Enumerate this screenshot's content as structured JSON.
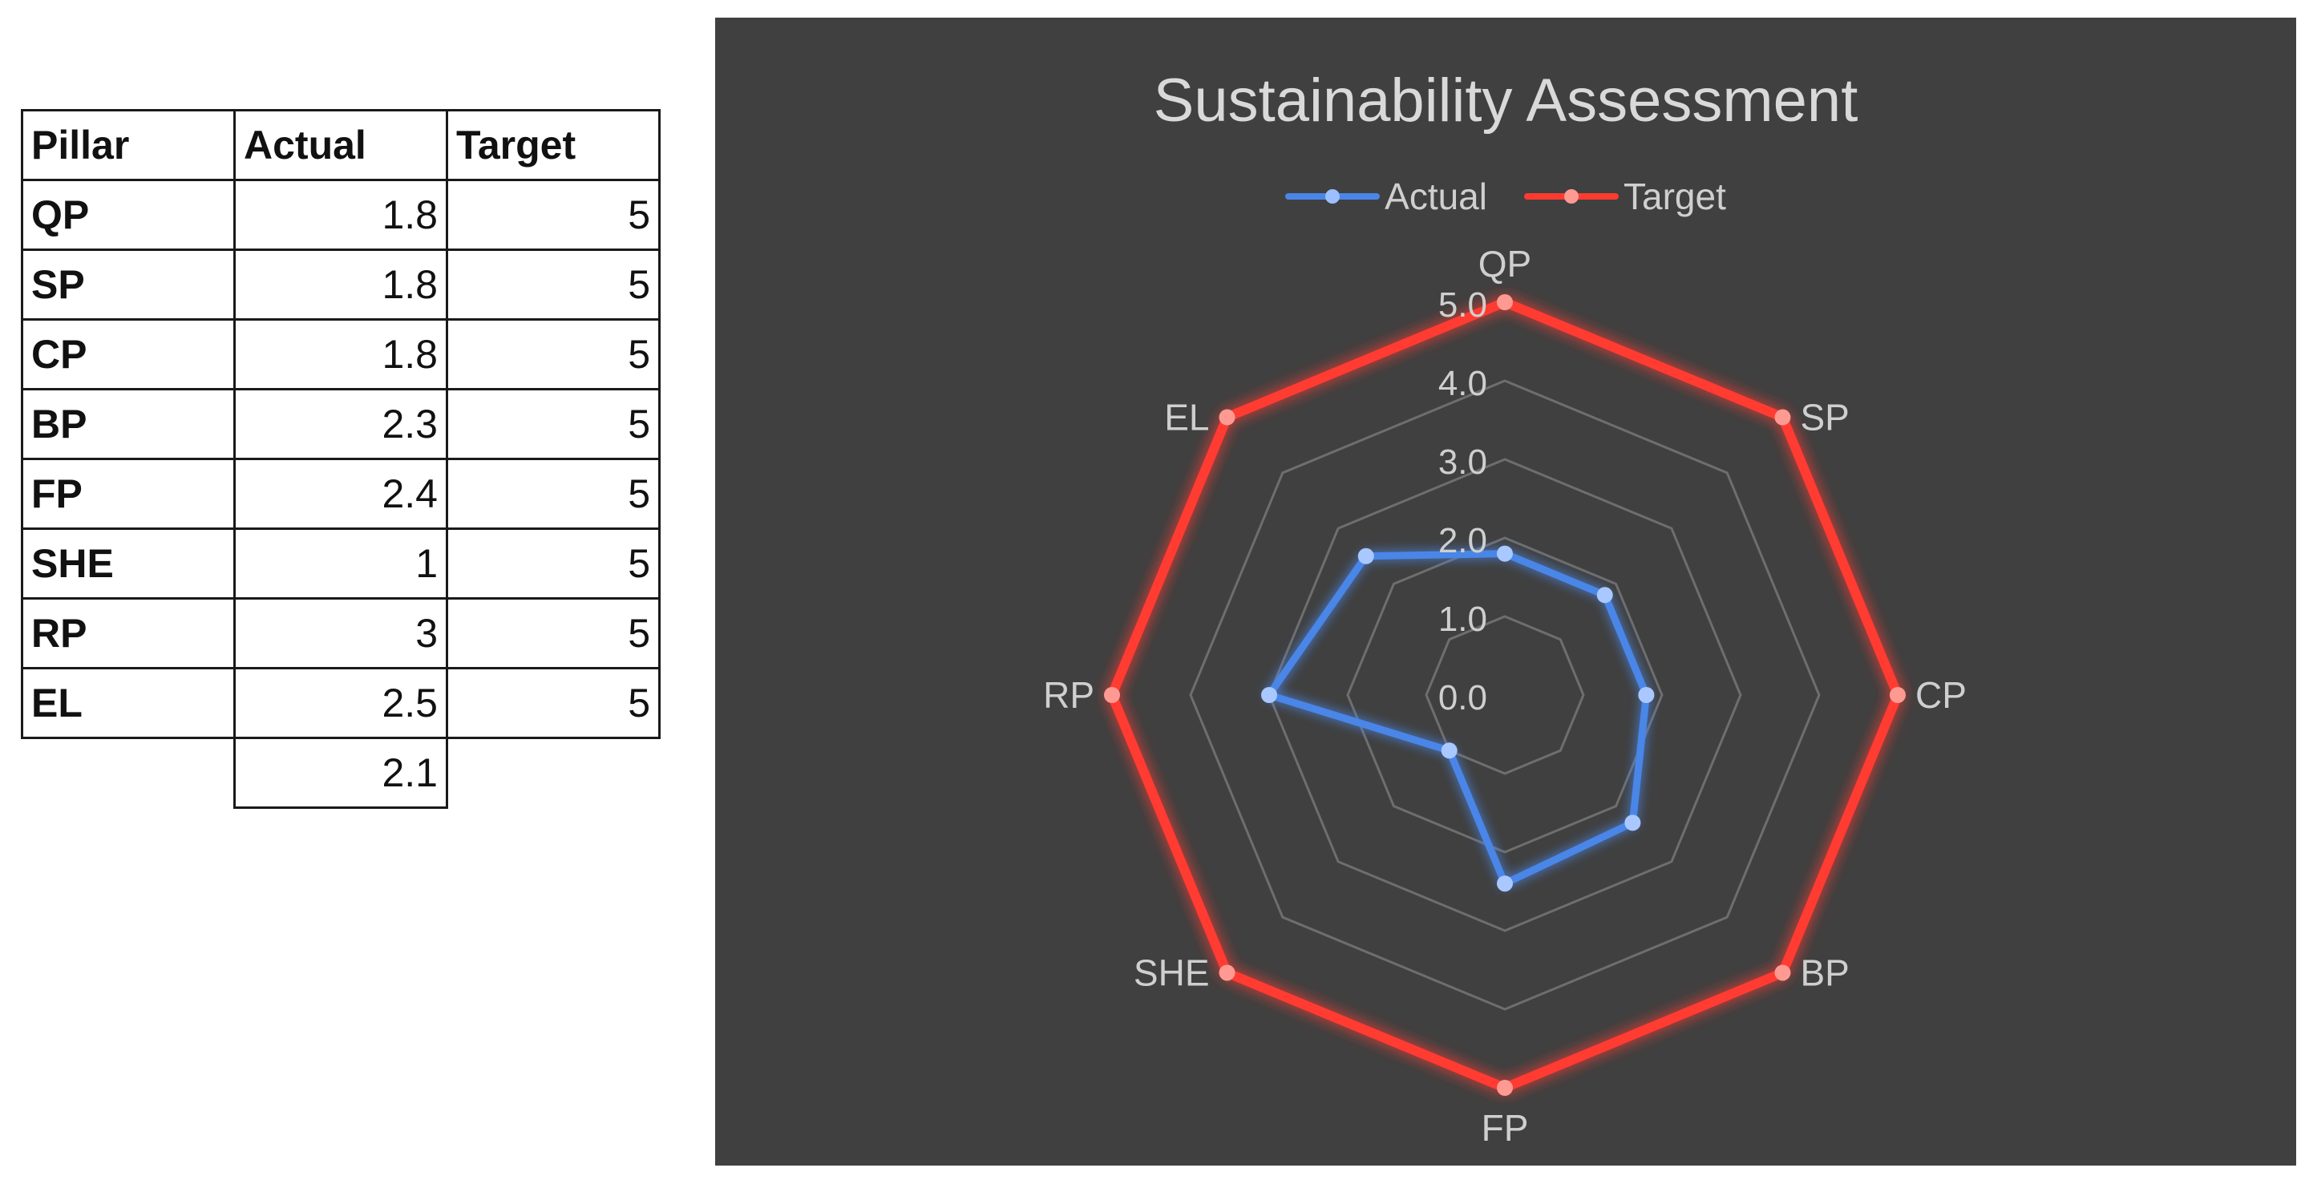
{
  "table": {
    "headers": [
      "Pillar",
      "Actual",
      "Target"
    ],
    "rows": [
      [
        "QP",
        "1.8",
        "5"
      ],
      [
        "SP",
        "1.8",
        "5"
      ],
      [
        "CP",
        "1.8",
        "5"
      ],
      [
        "BP",
        "2.3",
        "5"
      ],
      [
        "FP",
        "2.4",
        "5"
      ],
      [
        "SHE",
        "1",
        "5"
      ],
      [
        "RP",
        "3",
        "5"
      ],
      [
        "EL",
        "2.5",
        "5"
      ]
    ],
    "average": "2.1"
  },
  "chart_data": {
    "type": "radar",
    "title": "Sustainability Assessment",
    "categories": [
      "QP",
      "SP",
      "CP",
      "BP",
      "FP",
      "SHE",
      "RP",
      "EL"
    ],
    "series": [
      {
        "name": "Actual",
        "values": [
          1.8,
          1.8,
          1.8,
          2.3,
          2.4,
          1.0,
          3.0,
          2.5
        ],
        "color": "#4a86e8"
      },
      {
        "name": "Target",
        "values": [
          5,
          5,
          5,
          5,
          5,
          5,
          5,
          5
        ],
        "color": "#ff3b30"
      }
    ],
    "rlim": [
      0,
      5
    ],
    "tick_labels": [
      "0.0",
      "1.0",
      "2.0",
      "3.0",
      "4.0",
      "5.0"
    ],
    "legend_position": "top",
    "background": "#404040",
    "grid": true
  }
}
